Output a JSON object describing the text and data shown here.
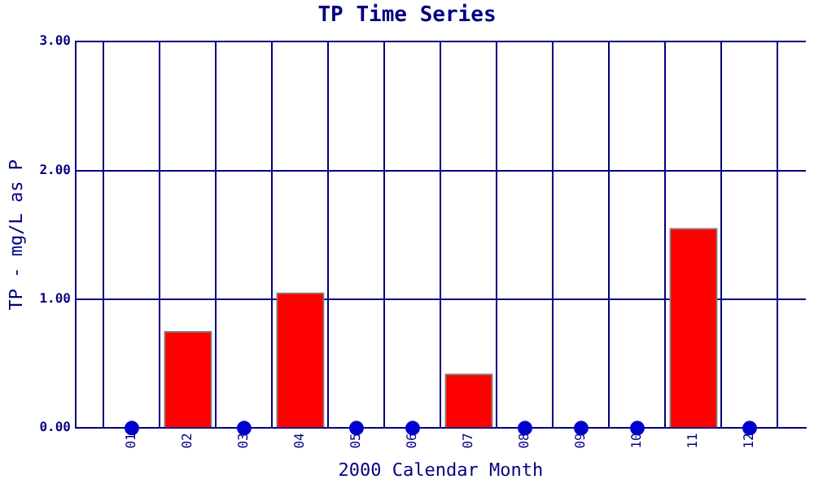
{
  "chart_data": {
    "type": "bar",
    "title": "TP Time Series",
    "xlabel": "2000 Calendar Month",
    "ylabel": "TP - mg/L as P",
    "categories": [
      "01",
      "02",
      "03",
      "04",
      "05",
      "06",
      "07",
      "08",
      "09",
      "10",
      "11",
      "12"
    ],
    "series": [
      {
        "color": "#ff0000",
        "values": [
          null,
          0.75,
          null,
          1.05,
          null,
          null,
          0.42,
          null,
          null,
          null,
          1.55,
          null
        ]
      },
      {
        "type": "scatter",
        "color": "#0000cc",
        "values": [
          0,
          null,
          0,
          null,
          0,
          0,
          null,
          0,
          0,
          0,
          null,
          0
        ]
      }
    ],
    "ylim": [
      0,
      3
    ],
    "yticks": [
      {
        "value": 0,
        "label": "0.00"
      },
      {
        "value": 1,
        "label": "1.00"
      },
      {
        "value": 2,
        "label": "2.00"
      },
      {
        "value": 3,
        "label": "3.00"
      }
    ],
    "grid": true,
    "marker": "circle",
    "legend": false
  }
}
